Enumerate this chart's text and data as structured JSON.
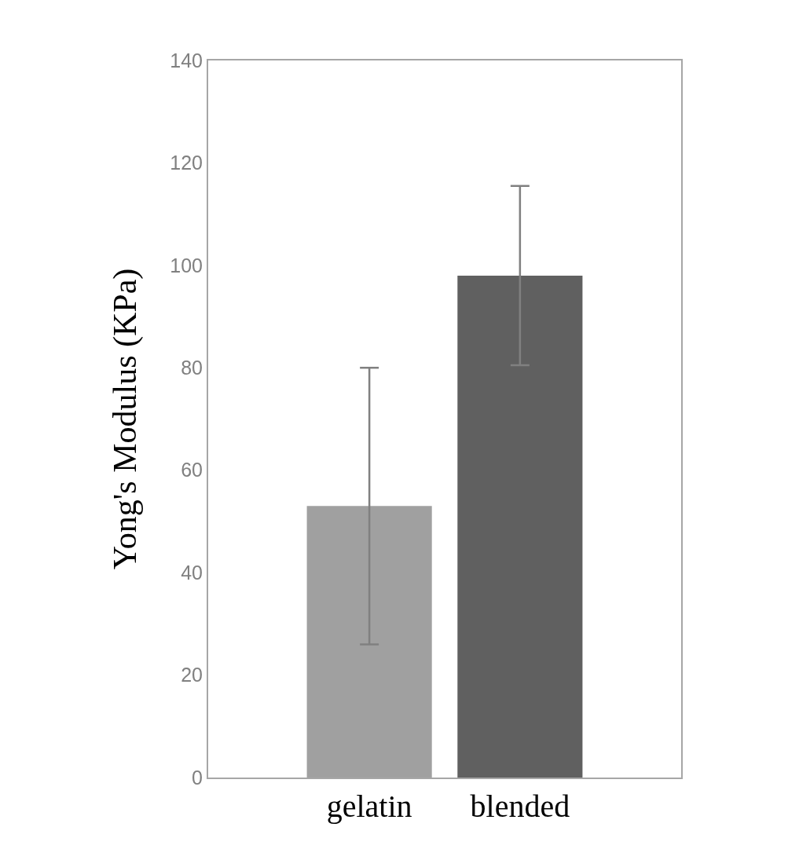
{
  "chart_data": {
    "type": "bar",
    "ylabel": "Yong's Modulus (KPa)",
    "categories": [
      "gelatin",
      "blended"
    ],
    "values": [
      53,
      98
    ],
    "colors": [
      "#a0a0a0",
      "#606060"
    ],
    "errors": [
      27,
      17.5
    ],
    "ylim": [
      0,
      140
    ],
    "yticks": [
      0,
      20,
      40,
      60,
      80,
      100,
      120,
      140
    ]
  }
}
